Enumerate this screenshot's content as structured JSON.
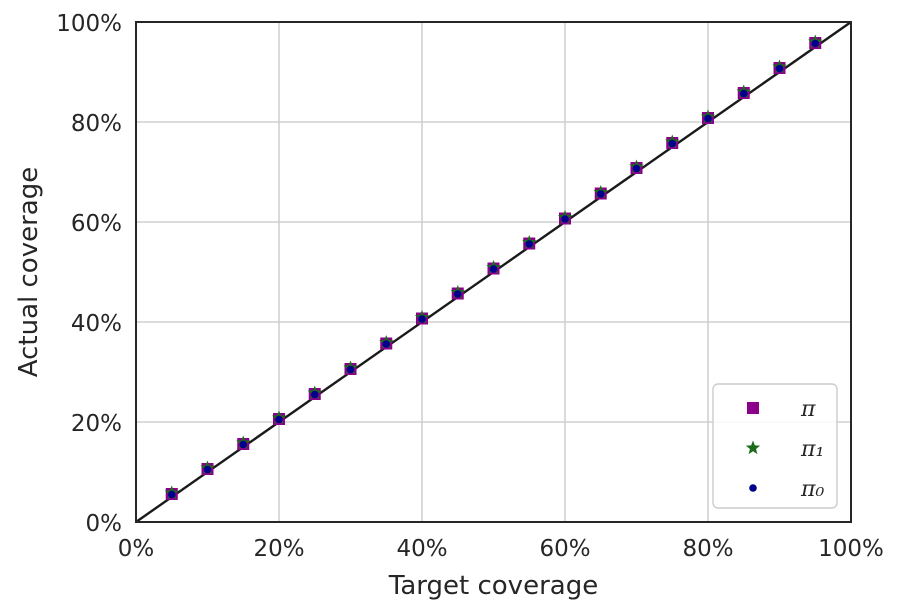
{
  "chart_data": {
    "type": "scatter",
    "xlabel": "Target coverage",
    "ylabel": "Actual coverage",
    "xlim": [
      0,
      1
    ],
    "ylim": [
      0,
      1
    ],
    "x_ticks": [
      "0%",
      "20%",
      "40%",
      "60%",
      "80%",
      "100%"
    ],
    "y_ticks": [
      "0%",
      "20%",
      "40%",
      "60%",
      "80%",
      "100%"
    ],
    "grid": true,
    "legend_position": "lower-right",
    "reference_line": {
      "from": [
        0,
        0
      ],
      "to": [
        1,
        1
      ],
      "color": "#1a1a1a"
    },
    "x": [
      0.05,
      0.1,
      0.15,
      0.2,
      0.25,
      0.3,
      0.35,
      0.4,
      0.45,
      0.5,
      0.55,
      0.6,
      0.65,
      0.7,
      0.75,
      0.8,
      0.85,
      0.9,
      0.95
    ],
    "series": [
      {
        "name": "π",
        "marker": "square",
        "color": "#8b008b",
        "values": [
          0.056,
          0.106,
          0.156,
          0.206,
          0.256,
          0.306,
          0.357,
          0.407,
          0.457,
          0.507,
          0.557,
          0.607,
          0.657,
          0.708,
          0.758,
          0.808,
          0.858,
          0.908,
          0.958
        ]
      },
      {
        "name": "π₁",
        "marker": "star",
        "color": "#1a6b1a",
        "values": [
          0.058,
          0.108,
          0.158,
          0.208,
          0.258,
          0.308,
          0.359,
          0.409,
          0.459,
          0.509,
          0.559,
          0.609,
          0.659,
          0.71,
          0.76,
          0.81,
          0.86,
          0.91,
          0.96
        ]
      },
      {
        "name": "π₀",
        "marker": "dot",
        "color": "#00008b",
        "values": [
          0.055,
          0.105,
          0.155,
          0.205,
          0.255,
          0.305,
          0.356,
          0.406,
          0.456,
          0.506,
          0.556,
          0.606,
          0.656,
          0.707,
          0.757,
          0.807,
          0.857,
          0.907,
          0.957
        ]
      }
    ]
  }
}
